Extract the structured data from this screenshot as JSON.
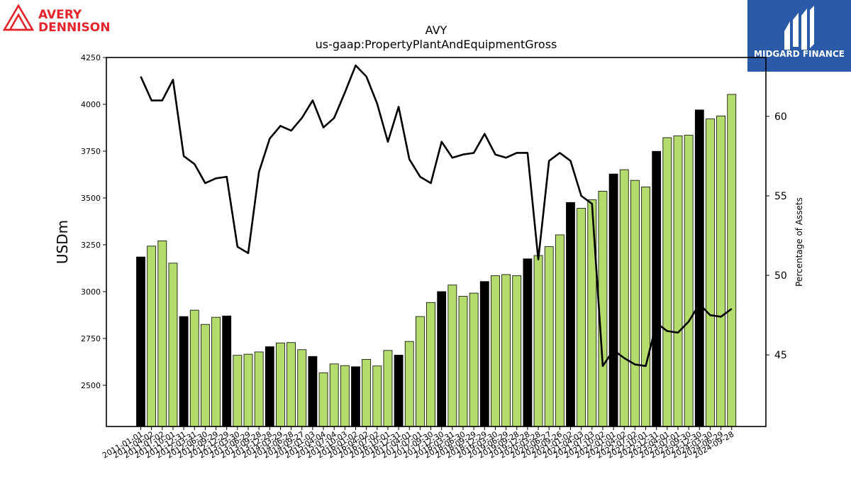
{
  "brand": {
    "logo_line1": "AVERY",
    "logo_line2": "DENNISON",
    "logo_color": "#e4232b",
    "badge_text": "MIDGARD FINANCE",
    "badge_color": "#2a5aa8"
  },
  "chart_data": {
    "type": "bar",
    "title": "AVY",
    "subtitle": "us-gaap:PropertyPlantAndEquipmentGross",
    "ylabel": "USDm",
    "y2label": "Percentage of Assets",
    "ylim": [
      2280,
      4250
    ],
    "y2lim": [
      40.5,
      63.7
    ],
    "yticks": [
      2500,
      2750,
      3000,
      3250,
      3500,
      3750,
      4000,
      4250
    ],
    "y2ticks": [
      45,
      50,
      55,
      60
    ],
    "xtick_labels": [
      "2011-01-01",
      "2011-04-02",
      "2011-07-02",
      "2011-10-01",
      "2011-12-31",
      "2012-03-31",
      "2012-06-30",
      "2012-09-29",
      "2012-12-29",
      "2013-03-30",
      "2013-06-29",
      "2013-09-28",
      "2013-12-28",
      "2014-03-29",
      "2014-06-28",
      "2014-09-27",
      "2015-01-03",
      "2015-04-04",
      "2015-07-04",
      "2015-10-03",
      "2016-01-02",
      "2016-04-02",
      "2016-07-02",
      "2016-10-01",
      "2016-12-31",
      "2017-04-01",
      "2017-07-01",
      "2017-09-30",
      "2017-12-30",
      "2018-03-31",
      "2018-06-30",
      "2018-09-29",
      "2018-12-29",
      "2019-03-30",
      "2019-06-29",
      "2019-09-28",
      "2019-12-28",
      "2020-03-28",
      "2020-06-27",
      "2020-09-26",
      "2021-01-02",
      "2021-04-03",
      "2021-07-03",
      "2021-10-02",
      "2022-01-01",
      "2022-04-02",
      "2022-07-02",
      "2022-10-01",
      "2022-12-31",
      "2023-04-01",
      "2023-07-01",
      "2023-09-30",
      "2023-12-30",
      "2024-03-30",
      "2024-06-29",
      "2024-09-28"
    ],
    "bar_values": [
      3185,
      3243,
      3271,
      3152,
      2867,
      2901,
      2825,
      2863,
      2870,
      2660,
      2666,
      2678,
      2706,
      2726,
      2728,
      2690,
      2654,
      2567,
      2614,
      2605,
      2599,
      2638,
      2603,
      2686,
      2661,
      2734,
      2867,
      2942,
      3000,
      3035,
      2975,
      2992,
      3054,
      3085,
      3091,
      3085,
      3175,
      3193,
      3240,
      3303,
      3476,
      3445,
      3490,
      3536,
      3628,
      3651,
      3594,
      3559,
      3749,
      3822,
      3832,
      3835,
      3970,
      3922,
      3938,
      4053
    ],
    "bar_colors": [
      "#000000",
      "#b3dc6c",
      "#b3dc6c",
      "#b3dc6c",
      "#000000",
      "#b3dc6c",
      "#b3dc6c",
      "#b3dc6c",
      "#000000",
      "#b3dc6c",
      "#b3dc6c",
      "#b3dc6c",
      "#000000",
      "#b3dc6c",
      "#b3dc6c",
      "#b3dc6c",
      "#000000",
      "#b3dc6c",
      "#b3dc6c",
      "#b3dc6c",
      "#000000",
      "#b3dc6c",
      "#b3dc6c",
      "#b3dc6c",
      "#000000",
      "#b3dc6c",
      "#b3dc6c",
      "#b3dc6c",
      "#000000",
      "#b3dc6c",
      "#b3dc6c",
      "#b3dc6c",
      "#000000",
      "#b3dc6c",
      "#b3dc6c",
      "#b3dc6c",
      "#000000",
      "#b3dc6c",
      "#b3dc6c",
      "#b3dc6c",
      "#000000",
      "#b3dc6c",
      "#b3dc6c",
      "#b3dc6c",
      "#000000",
      "#b3dc6c",
      "#b3dc6c",
      "#b3dc6c",
      "#000000",
      "#b3dc6c",
      "#b3dc6c",
      "#b3dc6c",
      "#000000",
      "#b3dc6c",
      "#b3dc6c",
      "#b3dc6c"
    ],
    "line_values": [
      62.5,
      61.0,
      61.0,
      62.3,
      57.5,
      57.0,
      55.8,
      56.1,
      56.2,
      51.8,
      51.4,
      56.5,
      58.6,
      59.4,
      59.1,
      59.9,
      61.0,
      59.3,
      59.9,
      61.5,
      63.2,
      62.5,
      60.8,
      58.4,
      60.6,
      57.3,
      56.2,
      55.8,
      58.4,
      57.4,
      57.6,
      57.7,
      58.9,
      57.6,
      57.4,
      57.7,
      57.7,
      51.0,
      57.2,
      57.7,
      57.2,
      55.0,
      54.5,
      44.3,
      45.3,
      44.8,
      44.4,
      44.3,
      47.0,
      46.5,
      46.4,
      47.1,
      48.2,
      47.5,
      47.4,
      47.9
    ],
    "line_color": "#000000",
    "grid": false,
    "legend": "none"
  }
}
